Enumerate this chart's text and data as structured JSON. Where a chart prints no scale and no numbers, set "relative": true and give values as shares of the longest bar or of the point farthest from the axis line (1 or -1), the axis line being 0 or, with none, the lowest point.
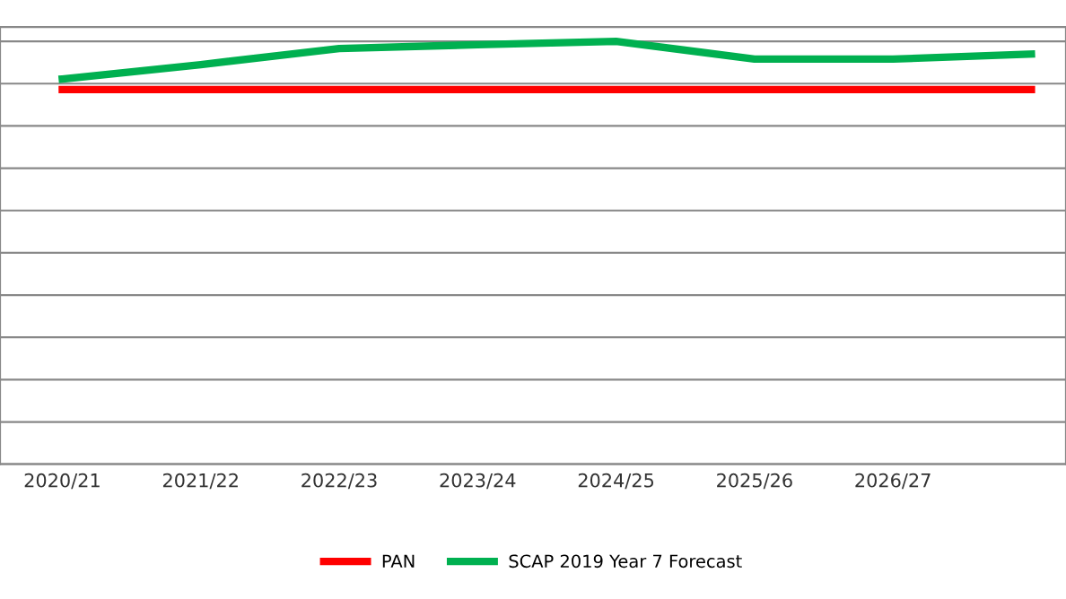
{
  "chart_data": {
    "type": "line",
    "relative": true,
    "categories": [
      "2020/21",
      "2021/22",
      "2022/23",
      "2023/24",
      "2024/25",
      "2025/26",
      "2026/27",
      null
    ],
    "series": [
      {
        "name": "PAN",
        "color": "#ff0000",
        "values": [
          0.886,
          0.886,
          0.886,
          0.886,
          0.886,
          0.886,
          0.886,
          0.886
        ]
      },
      {
        "name": "SCAP 2019 Year 7 Forecast",
        "color": "#00b050",
        "values": [
          0.911,
          0.945,
          0.983,
          0.992,
          1.0,
          0.958,
          0.958,
          0.97
        ]
      }
    ],
    "grid": "y",
    "legend": "bottom",
    "marker": "none",
    "line_style": "solid"
  }
}
